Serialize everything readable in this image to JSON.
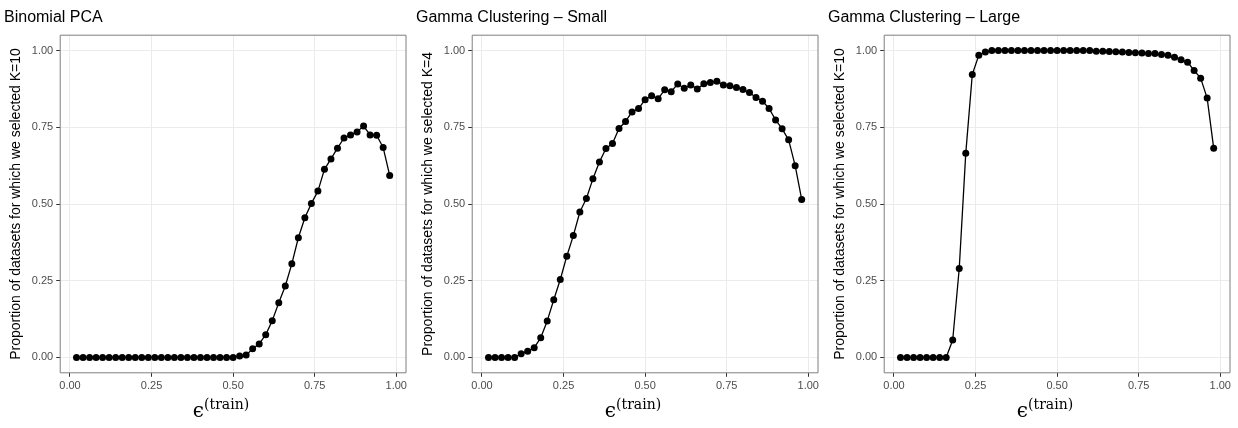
{
  "chart_data": [
    {
      "type": "line",
      "title": "Binomial PCA",
      "xlabel": "ϵ$^{(train)}$",
      "ylabel": "Proportion of datasets for which we selected K=10",
      "grid": true,
      "marker": "circle",
      "line_style": "solid",
      "x": [
        0.02,
        0.04,
        0.06,
        0.08,
        0.1,
        0.12,
        0.14,
        0.16,
        0.18,
        0.2,
        0.22,
        0.24,
        0.26,
        0.28,
        0.3,
        0.32,
        0.34,
        0.36,
        0.38,
        0.4,
        0.42,
        0.44,
        0.46,
        0.48,
        0.5,
        0.52,
        0.54,
        0.56,
        0.58,
        0.6,
        0.62,
        0.64,
        0.66,
        0.68,
        0.7,
        0.72,
        0.74,
        0.76,
        0.78,
        0.8,
        0.82,
        0.84,
        0.86,
        0.88,
        0.9,
        0.92,
        0.94,
        0.96,
        0.98
      ],
      "series": [
        {
          "color": "#000000",
          "values": [
            0,
            0,
            0,
            0,
            0,
            0,
            0,
            0,
            0,
            0,
            0,
            0,
            0,
            0,
            0,
            0,
            0,
            0,
            0,
            0,
            0,
            0,
            0,
            0,
            0,
            0.005,
            0.008,
            0.028,
            0.044,
            0.074,
            0.12,
            0.178,
            0.233,
            0.305,
            0.39,
            0.455,
            0.502,
            0.542,
            0.613,
            0.647,
            0.682,
            0.715,
            0.725,
            0.735,
            0.754,
            0.725,
            0.724,
            0.684,
            0.593
          ]
        }
      ],
      "xlim": [
        -0.03,
        1.03
      ],
      "xticks": [
        {
          "value": 0,
          "label": "0.00"
        },
        {
          "value": 0.25,
          "label": "0.25"
        },
        {
          "value": 0.5,
          "label": "0.50"
        },
        {
          "value": 0.75,
          "label": "0.75"
        },
        {
          "value": 1,
          "label": "1.00"
        }
      ],
      "ylim": [
        -0.05,
        1.05
      ],
      "yticks": [
        {
          "value": 0,
          "label": "0.00"
        },
        {
          "value": 0.25,
          "label": "0.25"
        },
        {
          "value": 0.5,
          "label": "0.50"
        },
        {
          "value": 0.75,
          "label": "0.75"
        },
        {
          "value": 1,
          "label": "1.00"
        }
      ]
    },
    {
      "type": "line",
      "title": "Gamma Clustering – Small",
      "xlabel": "ϵ$^{(train)}$",
      "ylabel": "Proportion of datasets for which we selected K=4",
      "grid": true,
      "marker": "circle",
      "line_style": "solid",
      "x": [
        0.02,
        0.04,
        0.06,
        0.08,
        0.1,
        0.12,
        0.14,
        0.16,
        0.18,
        0.2,
        0.22,
        0.24,
        0.26,
        0.28,
        0.3,
        0.32,
        0.34,
        0.36,
        0.38,
        0.4,
        0.42,
        0.44,
        0.46,
        0.48,
        0.5,
        0.52,
        0.54,
        0.56,
        0.58,
        0.6,
        0.62,
        0.64,
        0.66,
        0.68,
        0.7,
        0.72,
        0.74,
        0.76,
        0.78,
        0.8,
        0.82,
        0.84,
        0.86,
        0.88,
        0.9,
        0.92,
        0.94,
        0.96,
        0.98
      ],
      "series": [
        {
          "color": "#000000",
          "values": [
            0,
            0,
            0,
            0,
            0,
            0.012,
            0.02,
            0.032,
            0.064,
            0.119,
            0.188,
            0.254,
            0.33,
            0.397,
            0.474,
            0.518,
            0.582,
            0.637,
            0.681,
            0.697,
            0.746,
            0.769,
            0.8,
            0.811,
            0.84,
            0.853,
            0.843,
            0.872,
            0.866,
            0.891,
            0.877,
            0.888,
            0.875,
            0.892,
            0.896,
            0.9,
            0.888,
            0.885,
            0.88,
            0.873,
            0.863,
            0.847,
            0.835,
            0.811,
            0.774,
            0.745,
            0.709,
            0.625,
            0.515
          ]
        }
      ],
      "xlim": [
        -0.03,
        1.03
      ],
      "xticks": [
        {
          "value": 0,
          "label": "0.00"
        },
        {
          "value": 0.25,
          "label": "0.25"
        },
        {
          "value": 0.5,
          "label": "0.50"
        },
        {
          "value": 0.75,
          "label": "0.75"
        },
        {
          "value": 1,
          "label": "1.00"
        }
      ],
      "ylim": [
        -0.05,
        1.05
      ],
      "yticks": [
        {
          "value": 0,
          "label": "0.00"
        },
        {
          "value": 0.25,
          "label": "0.25"
        },
        {
          "value": 0.5,
          "label": "0.50"
        },
        {
          "value": 0.75,
          "label": "0.75"
        },
        {
          "value": 1,
          "label": "1.00"
        }
      ]
    },
    {
      "type": "line",
      "title": "Gamma Clustering – Large",
      "xlabel": "ϵ$^{(train)}$",
      "ylabel": "Proportion of datasets for which we selected K=10",
      "grid": true,
      "marker": "circle",
      "line_style": "solid",
      "x": [
        0.02,
        0.04,
        0.06,
        0.08,
        0.1,
        0.12,
        0.14,
        0.16,
        0.18,
        0.2,
        0.22,
        0.24,
        0.26,
        0.28,
        0.3,
        0.32,
        0.34,
        0.36,
        0.38,
        0.4,
        0.42,
        0.44,
        0.46,
        0.48,
        0.5,
        0.52,
        0.54,
        0.56,
        0.58,
        0.6,
        0.62,
        0.64,
        0.66,
        0.68,
        0.7,
        0.72,
        0.74,
        0.76,
        0.78,
        0.8,
        0.82,
        0.84,
        0.86,
        0.88,
        0.9,
        0.92,
        0.94,
        0.96,
        0.98
      ],
      "series": [
        {
          "color": "#000000",
          "values": [
            0,
            0,
            0,
            0,
            0,
            0,
            0,
            0,
            0.057,
            0.29,
            0.665,
            0.922,
            0.985,
            0.995,
            1,
            1,
            1,
            1,
            1,
            1,
            1,
            1,
            1,
            1,
            1,
            1,
            1,
            1,
            1,
            1,
            0.998,
            0.998,
            0.997,
            0.996,
            0.995,
            0.994,
            0.993,
            0.992,
            0.99,
            0.99,
            0.987,
            0.985,
            0.978,
            0.97,
            0.962,
            0.935,
            0.91,
            0.845,
            0.682
          ]
        }
      ],
      "xlim": [
        -0.03,
        1.03
      ],
      "xticks": [
        {
          "value": 0,
          "label": "0.00"
        },
        {
          "value": 0.25,
          "label": "0.25"
        },
        {
          "value": 0.5,
          "label": "0.50"
        },
        {
          "value": 0.75,
          "label": "0.75"
        },
        {
          "value": 1,
          "label": "1.00"
        }
      ],
      "ylim": [
        -0.05,
        1.05
      ],
      "yticks": [
        {
          "value": 0,
          "label": "0.00"
        },
        {
          "value": 0.25,
          "label": "0.25"
        },
        {
          "value": 0.5,
          "label": "0.50"
        },
        {
          "value": 0.75,
          "label": "0.75"
        },
        {
          "value": 1,
          "label": "1.00"
        }
      ]
    }
  ]
}
